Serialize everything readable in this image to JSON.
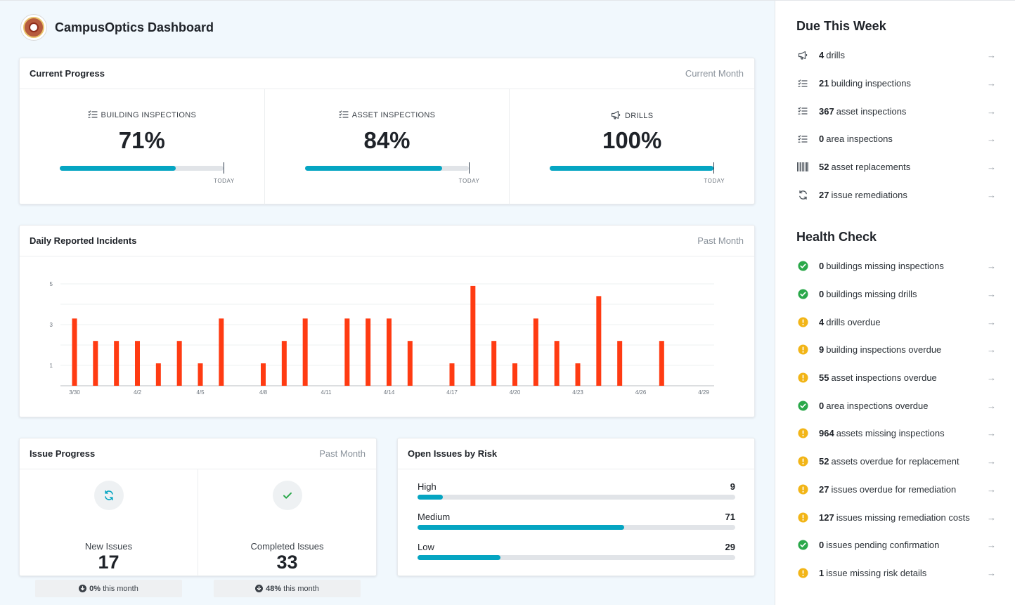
{
  "app": {
    "title": "CampusOptics Dashboard"
  },
  "progress": {
    "title": "Current Progress",
    "period": "Current Month",
    "today_label": "TODAY",
    "metrics": [
      {
        "label": "BUILDING INSPECTIONS",
        "value": "71%",
        "fraction": 0.71,
        "icon": "checklist-icon"
      },
      {
        "label": "ASSET INSPECTIONS",
        "value": "84%",
        "fraction": 0.84,
        "icon": "checklist-icon"
      },
      {
        "label": "DRILLS",
        "value": "100%",
        "fraction": 1.0,
        "icon": "megaphone-icon"
      }
    ]
  },
  "incidents": {
    "title": "Daily Reported Incidents",
    "period": "Past Month"
  },
  "chart_data": {
    "type": "bar",
    "title": "Daily Reported Incidents",
    "x": [
      "3/30",
      "3/31",
      "4/1",
      "4/2",
      "4/3",
      "4/4",
      "4/5",
      "4/6",
      "4/7",
      "4/8",
      "4/9",
      "4/10",
      "4/11",
      "4/12",
      "4/13",
      "4/14",
      "4/15",
      "4/16",
      "4/17",
      "4/18",
      "4/19",
      "4/20",
      "4/21",
      "4/22",
      "4/23",
      "4/24",
      "4/25",
      "4/26",
      "4/27",
      "4/28",
      "4/29"
    ],
    "values": [
      3.3,
      2.2,
      2.2,
      2.2,
      1.1,
      2.2,
      1.1,
      3.3,
      0,
      1.1,
      2.2,
      3.3,
      0,
      3.3,
      3.3,
      3.3,
      2.2,
      0,
      1.1,
      4.9,
      2.2,
      1.1,
      3.3,
      2.2,
      1.1,
      4.4,
      2.2,
      0,
      2.2,
      0,
      0
    ],
    "x_tick_labels": [
      "3/30",
      "4/2",
      "4/5",
      "4/8",
      "4/11",
      "4/14",
      "4/17",
      "4/20",
      "4/23",
      "4/26",
      "4/29"
    ],
    "y_tick_labels": [
      "1",
      "3",
      "5"
    ],
    "ylim": [
      0,
      5
    ],
    "color": "#ff3b12",
    "grid": true
  },
  "issue_progress": {
    "title": "Issue Progress",
    "period": "Past Month",
    "new": {
      "label": "New Issues",
      "value": "17",
      "pct": "0%",
      "note": "this month",
      "icon": "refresh-icon"
    },
    "completed": {
      "label": "Completed Issues",
      "value": "33",
      "pct": "48%",
      "note": "this month",
      "icon": "check-icon"
    }
  },
  "risk": {
    "title": "Open Issues by Risk",
    "rows": [
      {
        "label": "High",
        "value": "9",
        "fraction": 0.08
      },
      {
        "label": "Medium",
        "value": "71",
        "fraction": 0.65
      },
      {
        "label": "Low",
        "value": "29",
        "fraction": 0.26
      }
    ]
  },
  "due": {
    "title": "Due This Week",
    "items": [
      {
        "count": "4",
        "text": "drills",
        "icon": "megaphone-icon"
      },
      {
        "count": "21",
        "text": "building inspections",
        "icon": "checklist-icon"
      },
      {
        "count": "367",
        "text": "asset inspections",
        "icon": "checklist-icon"
      },
      {
        "count": "0",
        "text": "area inspections",
        "icon": "checklist-icon"
      },
      {
        "count": "52",
        "text": "asset replacements",
        "icon": "barcode-icon"
      },
      {
        "count": "27",
        "text": "issue remediations",
        "icon": "refresh-icon"
      }
    ]
  },
  "health": {
    "title": "Health Check",
    "items": [
      {
        "count": "0",
        "text": "buildings missing inspections",
        "status": "ok"
      },
      {
        "count": "0",
        "text": "buildings missing drills",
        "status": "ok"
      },
      {
        "count": "4",
        "text": "drills overdue",
        "status": "warn"
      },
      {
        "count": "9",
        "text": "building inspections overdue",
        "status": "warn"
      },
      {
        "count": "55",
        "text": "asset inspections overdue",
        "status": "warn"
      },
      {
        "count": "0",
        "text": "area inspections overdue",
        "status": "ok"
      },
      {
        "count": "964",
        "text": "assets missing inspections",
        "status": "warn"
      },
      {
        "count": "52",
        "text": "assets overdue for replacement",
        "status": "warn"
      },
      {
        "count": "27",
        "text": "issues overdue for remediation",
        "status": "warn"
      },
      {
        "count": "127",
        "text": "issues missing remediation costs",
        "status": "warn"
      },
      {
        "count": "0",
        "text": "issues pending confirmation",
        "status": "ok"
      },
      {
        "count": "1",
        "text": "issue missing risk details",
        "status": "warn"
      }
    ]
  },
  "colors": {
    "accent": "#05a5c2",
    "ok": "#2aa84a",
    "warn": "#f2b517",
    "bar": "#ff3b12"
  },
  "arrow": "→"
}
